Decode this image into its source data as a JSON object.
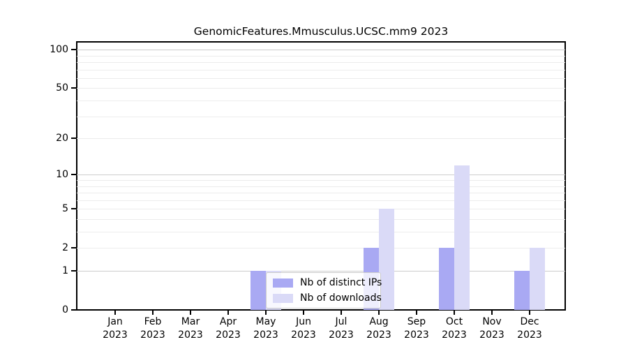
{
  "figure": {
    "title": "GenomicFeatures.Mmusculus.UCSC.mm9 2023"
  },
  "legend": {
    "items": [
      {
        "label": "Nb of distinct IPs",
        "color": "#a9a9f3"
      },
      {
        "label": "Nb of downloads",
        "color": "#dadaf7"
      }
    ]
  },
  "colors": {
    "bar_distinct_ips": "#a9a9f3",
    "bar_downloads": "#dadaf7",
    "major_gridline": "#cccccc",
    "minor_gridline": "#ececec",
    "axis_spine": "#000000"
  },
  "chart_data": {
    "type": "bar",
    "title": "GenomicFeatures.Mmusculus.UCSC.mm9 2023",
    "xlabel": "",
    "ylabel": "",
    "categories": [
      "Jan",
      "Feb",
      "Mar",
      "Apr",
      "May",
      "Jun",
      "Jul",
      "Aug",
      "Sep",
      "Oct",
      "Nov",
      "Dec"
    ],
    "category_year": "2023",
    "series": [
      {
        "name": "Nb of distinct IPs",
        "color": "#a9a9f3",
        "values": [
          0,
          0,
          0,
          0,
          1,
          0,
          0,
          2,
          0,
          2,
          0,
          1
        ]
      },
      {
        "name": "Nb of downloads",
        "color": "#dadaf7",
        "values": [
          0,
          0,
          0,
          0,
          1,
          0,
          0,
          5,
          0,
          12,
          0,
          2
        ]
      }
    ],
    "y_scale": "log10(1+x)",
    "ylim": [
      0,
      115
    ],
    "y_ticks": [
      100,
      50,
      20,
      10,
      5,
      2,
      1,
      0
    ],
    "y_major_gridlines": [
      1,
      10,
      100
    ],
    "y_minor_gridlines": [
      2,
      3,
      4,
      5,
      6,
      7,
      8,
      9,
      20,
      30,
      40,
      50,
      60,
      70,
      80,
      90
    ],
    "grid": "on",
    "legend_position": "lower center inside plot"
  }
}
